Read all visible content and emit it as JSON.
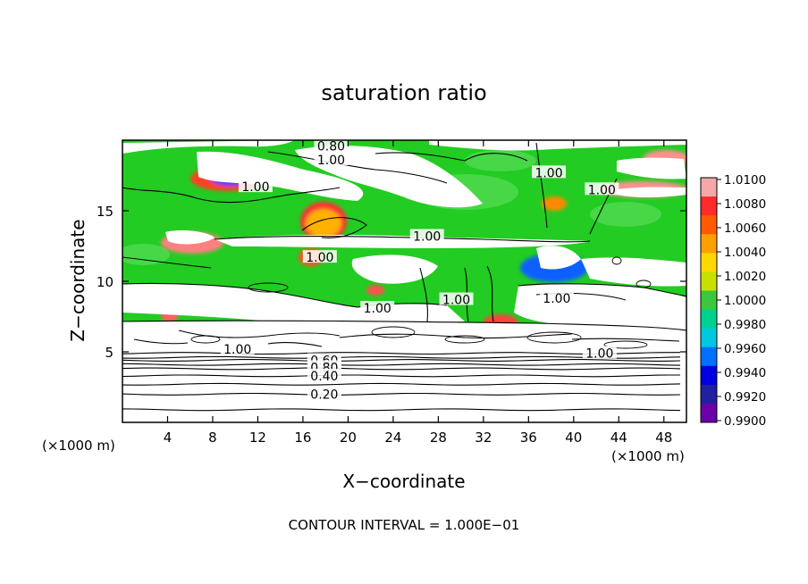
{
  "chart_data": {
    "type": "heatmap",
    "title": "saturation ratio",
    "xlabel": "X−coordinate",
    "ylabel": "Z−coordinate",
    "x_unit_left": "(×1000 m)",
    "x_unit_right": "(×1000 m)",
    "xlim": [
      0,
      50
    ],
    "ylim": [
      0,
      20
    ],
    "xticks": [
      4,
      8,
      12,
      16,
      20,
      24,
      28,
      32,
      36,
      40,
      44,
      48
    ],
    "xtick_labels": [
      "4",
      "8",
      "12",
      "16",
      "20",
      "24",
      "28",
      "32",
      "36",
      "40",
      "44",
      "48"
    ],
    "yticks": [
      5,
      10,
      15
    ],
    "ytick_labels": [
      "5",
      "10",
      "15"
    ],
    "footer": "CONTOUR INTERVAL = 1.000E−01",
    "colorbar": {
      "labels": [
        "1.0100",
        "1.0080",
        "1.0060",
        "1.0040",
        "1.0020",
        "1.0000",
        "0.9980",
        "0.9960",
        "0.9940",
        "0.9920",
        "0.9900"
      ],
      "colors": [
        "#f4a8a8",
        "#ff2a2a",
        "#ff5a00",
        "#ffa000",
        "#ffd800",
        "#c8e000",
        "#3cc83c",
        "#00d090",
        "#00c8e0",
        "#0070ff",
        "#0000e0",
        "#2020a0",
        "#6a00a8"
      ]
    },
    "background_color": "#22cc22",
    "contour_labels": [
      {
        "text": "0.80",
        "x": 18.5,
        "z": 19.6
      },
      {
        "text": "1.00",
        "x": 18.5,
        "z": 18.6
      },
      {
        "text": "1.00",
        "x": 11.8,
        "z": 16.7
      },
      {
        "text": "1.00",
        "x": 37.8,
        "z": 17.7
      },
      {
        "text": "1.00",
        "x": 42.5,
        "z": 16.5
      },
      {
        "text": "1.00",
        "x": 27.0,
        "z": 13.2
      },
      {
        "text": "1.00",
        "x": 17.5,
        "z": 11.7
      },
      {
        "text": "1.00",
        "x": 29.6,
        "z": 8.7
      },
      {
        "text": "1.00",
        "x": 22.6,
        "z": 8.1
      },
      {
        "text": "1.00",
        "x": 38.5,
        "z": 8.8
      },
      {
        "text": "1.00",
        "x": 10.2,
        "z": 5.2
      },
      {
        "text": "1.00",
        "x": 42.3,
        "z": 4.9
      },
      {
        "text": "0.60",
        "x": 17.9,
        "z": 4.4
      },
      {
        "text": "0.80",
        "x": 17.9,
        "z": 3.9
      },
      {
        "text": "0.40",
        "x": 17.9,
        "z": 3.3
      },
      {
        "text": "0.20",
        "x": 17.9,
        "z": 2.0
      }
    ],
    "stratified_contours_z": [
      0.9,
      2.0,
      2.7,
      3.3,
      3.8,
      4.1,
      4.4,
      4.6,
      4.9
    ]
  }
}
